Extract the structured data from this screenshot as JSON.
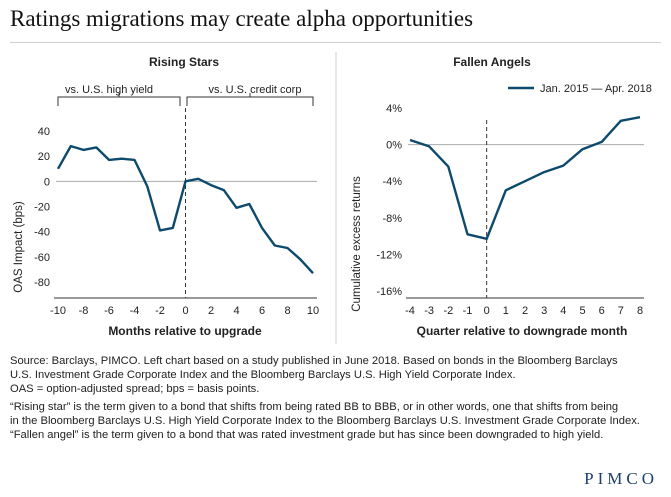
{
  "title": "Ratings migrations may create alpha opportunities",
  "logo": "PIMCO",
  "colors": {
    "line": "#0d4a6e",
    "axis": "#333333",
    "zero": "#aaaaaa"
  },
  "chart_data": [
    {
      "type": "line",
      "title": "Rising Stars",
      "xlabel": "Months relative to upgrade",
      "ylabel": "OAS Impact (bps)",
      "xlim": [
        -10,
        10
      ],
      "ylim": [
        -80,
        40
      ],
      "xticks": [
        "-10",
        "-8",
        "-6",
        "-4",
        "-2",
        "0",
        "2",
        "4",
        "6",
        "8",
        "10"
      ],
      "yticks": [
        "40",
        "20",
        "0",
        "-20",
        "-40",
        "-60",
        "-80"
      ],
      "brackets": [
        "vs. U.S. high yield",
        "vs. U.S. credit corp"
      ],
      "series": [
        {
          "x": [
            -10,
            -9,
            -8,
            -7,
            -6,
            -5,
            -4,
            -3,
            -2,
            -1,
            0,
            1,
            2,
            3,
            4,
            5,
            6,
            7,
            8,
            9,
            10
          ],
          "y": [
            10,
            28,
            25,
            27,
            17,
            18,
            17,
            -4,
            -39,
            -37,
            0,
            2,
            -3,
            -7,
            -21,
            -18,
            -37,
            -51,
            -53,
            -62,
            -73
          ]
        }
      ]
    },
    {
      "type": "line",
      "title": "Fallen Angels",
      "xlabel": "Quarter relative to downgrade month",
      "ylabel": "Cumulative excess returns",
      "xlim": [
        -4,
        8
      ],
      "ylim": [
        -16,
        4
      ],
      "xticks": [
        "-4",
        "-3",
        "-2",
        "-1",
        "0",
        "1",
        "2",
        "3",
        "4",
        "5",
        "6",
        "7",
        "8"
      ],
      "yticks": [
        "4%",
        "0%",
        "-4%",
        "-8%",
        "-12%",
        "-16%"
      ],
      "series": [
        {
          "name": "Jan. 2015 — Apr. 2018",
          "x": [
            -4,
            -3,
            -2,
            -1,
            0,
            1,
            2,
            3,
            4,
            5,
            6,
            7,
            8
          ],
          "y": [
            0.5,
            -0.2,
            -2.4,
            -9.8,
            -10.3,
            -5.0,
            -4.0,
            -3.0,
            -2.3,
            -0.5,
            0.3,
            2.6,
            3.0
          ]
        }
      ]
    }
  ],
  "notes": [
    "Source: Barclays, PIMCO. Left chart based on a study published in June 2018. Based on bonds in the Bloomberg Barclays",
    "U.S. Investment Grade Corporate Index and the Bloomberg Barclays U.S. High Yield Corporate Index.",
    "OAS = option-adjusted spread; bps = basis points.",
    "“Rising star” is the term given to a bond that shifts from being rated BB to BBB, or in other words, one that shifts from being",
    "in the Bloomberg Barclays U.S. High Yield Corporate Index to the Bloomberg Barclays U.S. Investment Grade Corporate Index.",
    "“Fallen angel” is the term given to a bond that was rated investment grade but has since been downgraded to high yield."
  ]
}
